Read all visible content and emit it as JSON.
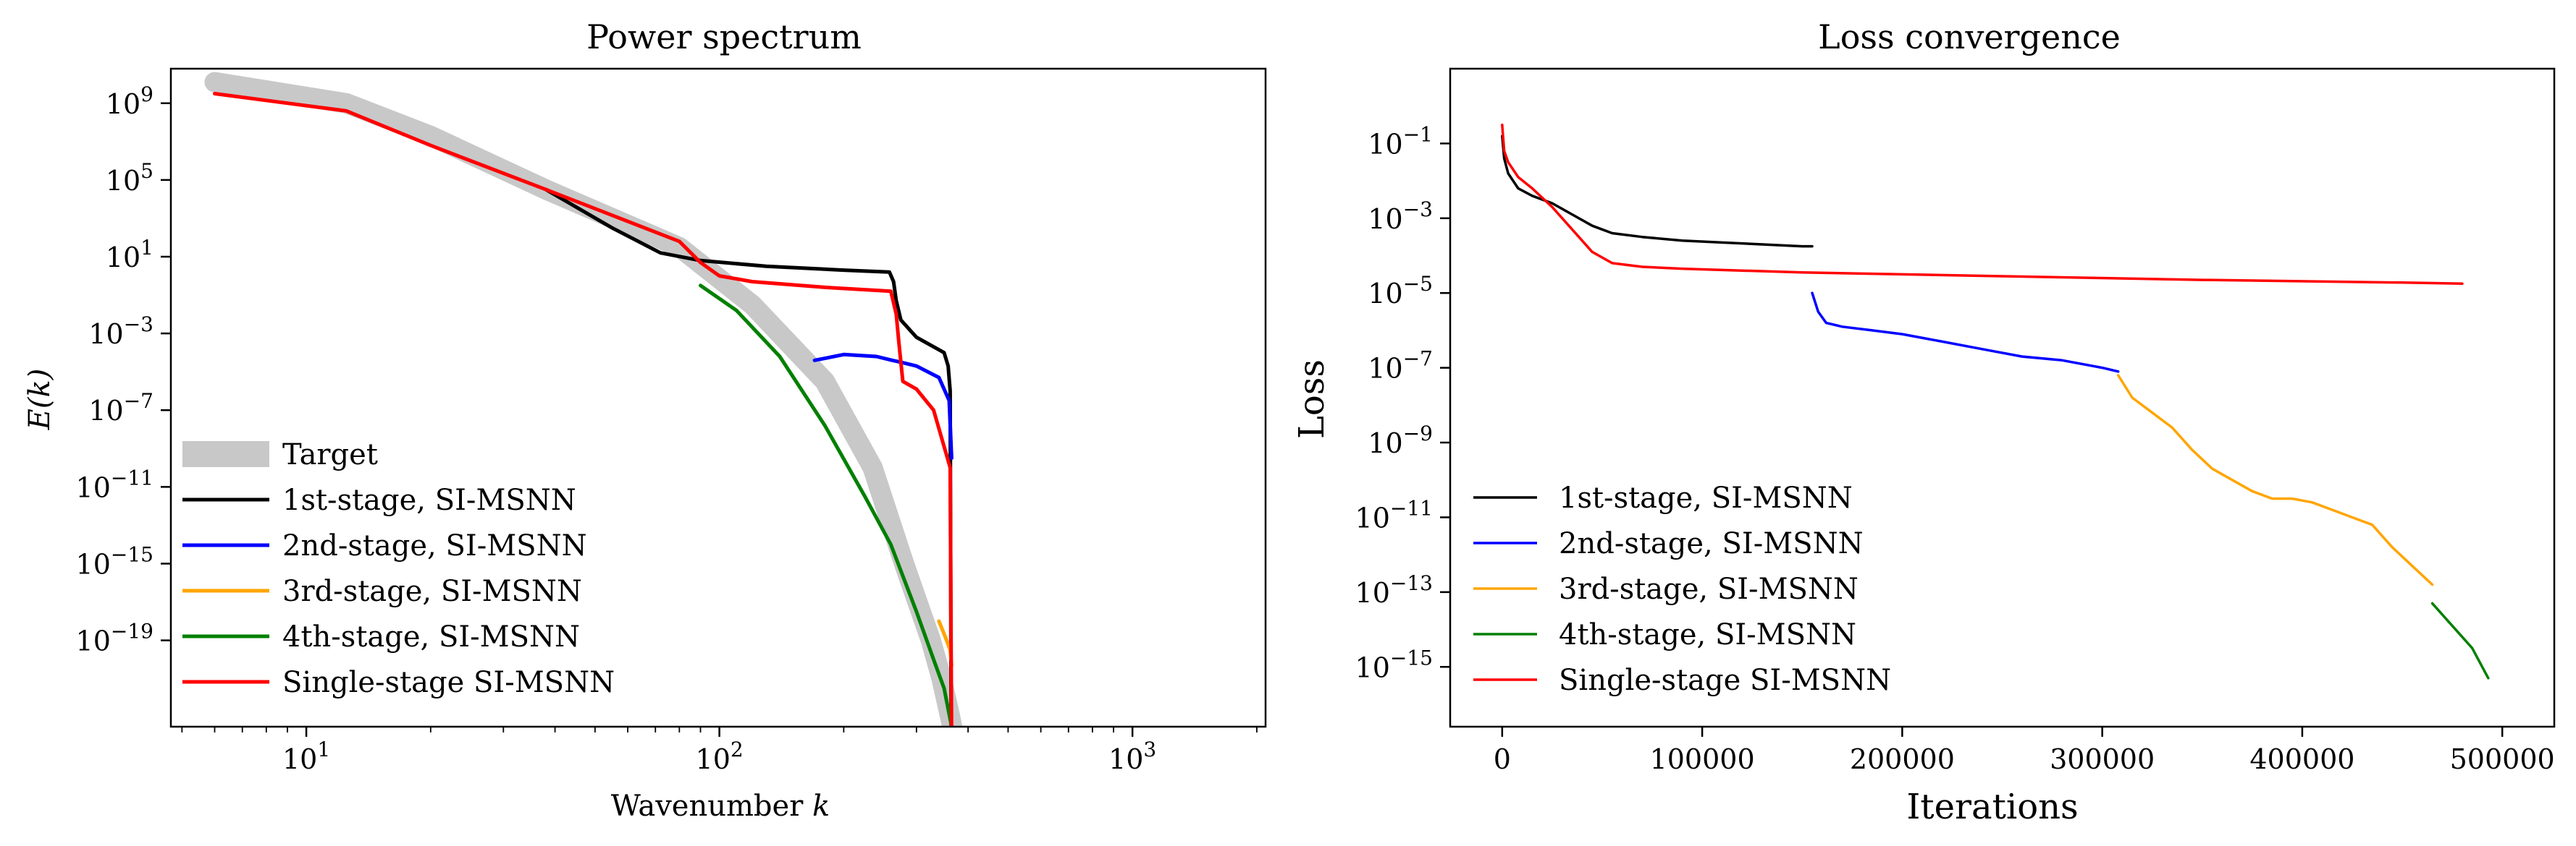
{
  "chart_data": [
    {
      "type": "line",
      "title": "Power spectrum",
      "xlabel": "Wavenumber k",
      "xlabel_text": "Wavenumber ",
      "xlabel_var": "k",
      "ylabel": "E(k)",
      "xscale": "log",
      "yscale": "log",
      "xlim": [
        4.7,
        2100
      ],
      "ylim_exp": [
        -23.5,
        10.8
      ],
      "xticks": [
        {
          "value": 10,
          "base": "10",
          "exp": "1"
        },
        {
          "value": 100,
          "base": "10",
          "exp": "2"
        },
        {
          "value": 1000,
          "base": "10",
          "exp": "3"
        }
      ],
      "yticks": [
        {
          "exp_value": 9,
          "base": "10",
          "exp": "9"
        },
        {
          "exp_value": 5,
          "base": "10",
          "exp": "5"
        },
        {
          "exp_value": 1,
          "base": "10",
          "exp": "1"
        },
        {
          "exp_value": -3,
          "base": "10",
          "exp": "−3"
        },
        {
          "exp_value": -7,
          "base": "10",
          "exp": "−7"
        },
        {
          "exp_value": -11,
          "base": "10",
          "exp": "−11"
        },
        {
          "exp_value": -15,
          "base": "10",
          "exp": "−15"
        },
        {
          "exp_value": -19,
          "base": "10",
          "exp": "−19"
        }
      ],
      "legend_position": "lower-left",
      "series": [
        {
          "name": "Target",
          "color": "#c8c8c8",
          "width": 28,
          "x": [
            6,
            12.5,
            20,
            38,
            80,
            120,
            180,
            235,
            280,
            325,
            345,
            362,
            370
          ],
          "log10y": [
            10.1,
            9.0,
            7.3,
            4.5,
            1.5,
            -1.5,
            -5.5,
            -10.0,
            -15.0,
            -19.0,
            -21.0,
            -23.0,
            -24.0
          ]
        },
        {
          "name": "1st-stage, SI-MSNN",
          "color": "#000000",
          "width": 5,
          "x": [
            38,
            55,
            72,
            90,
            130,
            200,
            258,
            264,
            268,
            275,
            300,
            350,
            358,
            362,
            364
          ],
          "log10y": [
            4.5,
            2.5,
            1.2,
            0.8,
            0.5,
            0.3,
            0.2,
            -0.3,
            -1.3,
            -2.3,
            -3.2,
            -4.0,
            -4.7,
            -6.0,
            -24.5
          ]
        },
        {
          "name": "2nd-stage, SI-MSNN",
          "color": "#0000ff",
          "width": 5,
          "x": [
            170,
            180,
            200,
            240,
            262,
            275,
            300,
            340,
            360,
            365
          ],
          "log10y": [
            -4.4,
            -4.3,
            -4.1,
            -4.2,
            -4.4,
            -4.5,
            -4.7,
            -5.3,
            -6.5,
            -9.5
          ]
        },
        {
          "name": "3rd-stage, SI-MSNN",
          "color": "#ffa500",
          "width": 5,
          "x": [
            340,
            352,
            362,
            365
          ],
          "log10y": [
            -18.0,
            -18.8,
            -19.5,
            -20.3
          ]
        },
        {
          "name": "4th-stage, SI-MSNN",
          "color": "#008000",
          "width": 5,
          "x": [
            90,
            110,
            140,
            180,
            225,
            260,
            300,
            330,
            350,
            365
          ],
          "log10y": [
            -0.5,
            -1.8,
            -4.2,
            -7.8,
            -11.5,
            -14.0,
            -17.5,
            -20.0,
            -21.5,
            -23.5
          ]
        },
        {
          "name": "Single-stage SI-MSNN",
          "color": "#ff0000",
          "width": 5,
          "x": [
            6,
            12.5,
            20,
            38,
            80,
            90,
            100,
            120,
            180,
            260,
            268,
            272,
            278,
            300,
            330,
            362,
            365
          ],
          "log10y": [
            9.5,
            8.6,
            6.8,
            4.5,
            1.8,
            0.7,
            0.0,
            -0.3,
            -0.6,
            -0.8,
            -2.0,
            -3.5,
            -5.5,
            -5.9,
            -7.0,
            -10.0,
            -24.5
          ]
        }
      ]
    },
    {
      "type": "line",
      "title": "Loss convergence",
      "xlabel": "Iterations",
      "ylabel": "Loss",
      "xscale": "linear",
      "yscale": "log",
      "xlim": [
        -26000,
        526000
      ],
      "ylim_exp": [
        -16.6,
        1.0
      ],
      "xticks": [
        {
          "value": 0,
          "label": "0"
        },
        {
          "value": 100000,
          "label": "100000"
        },
        {
          "value": 200000,
          "label": "200000"
        },
        {
          "value": 300000,
          "label": "300000"
        },
        {
          "value": 400000,
          "label": "400000"
        },
        {
          "value": 500000,
          "label": "500000"
        }
      ],
      "yticks": [
        {
          "exp_value": -1,
          "base": "10",
          "exp": "−1"
        },
        {
          "exp_value": -3,
          "base": "10",
          "exp": "−3"
        },
        {
          "exp_value": -5,
          "base": "10",
          "exp": "−5"
        },
        {
          "exp_value": -7,
          "base": "10",
          "exp": "−7"
        },
        {
          "exp_value": -9,
          "base": "10",
          "exp": "−9"
        },
        {
          "exp_value": -11,
          "base": "10",
          "exp": "−11"
        },
        {
          "exp_value": -13,
          "base": "10",
          "exp": "−13"
        },
        {
          "exp_value": -15,
          "base": "10",
          "exp": "−15"
        }
      ],
      "legend_position": "lower-left",
      "series": [
        {
          "name": "1st-stage, SI-MSNN",
          "color": "#000000",
          "width": 3.5,
          "x": [
            0,
            1000,
            3000,
            8000,
            15000,
            25000,
            35000,
            45000,
            55000,
            70000,
            90000,
            110000,
            130000,
            150000,
            155000
          ],
          "log10y": [
            -0.8,
            -1.4,
            -1.8,
            -2.2,
            -2.4,
            -2.6,
            -2.9,
            -3.2,
            -3.4,
            -3.5,
            -3.6,
            -3.65,
            -3.7,
            -3.75,
            -3.75
          ]
        },
        {
          "name": "2nd-stage, SI-MSNN",
          "color": "#0000ff",
          "width": 3.5,
          "x": [
            155000,
            158000,
            162000,
            170000,
            185000,
            200000,
            220000,
            240000,
            260000,
            280000,
            300000,
            308000
          ],
          "log10y": [
            -5.0,
            -5.5,
            -5.8,
            -5.9,
            -6.0,
            -6.1,
            -6.3,
            -6.5,
            -6.7,
            -6.8,
            -7.0,
            -7.1
          ]
        },
        {
          "name": "3rd-stage, SI-MSNN",
          "color": "#ffa500",
          "width": 3.5,
          "x": [
            308000,
            315000,
            325000,
            335000,
            345000,
            355000,
            365000,
            375000,
            385000,
            395000,
            405000,
            415000,
            425000,
            435000,
            445000,
            455000,
            465000
          ],
          "log10y": [
            -7.2,
            -7.8,
            -8.2,
            -8.6,
            -9.2,
            -9.7,
            -10.0,
            -10.3,
            -10.5,
            -10.5,
            -10.6,
            -10.8,
            -11.0,
            -11.2,
            -11.8,
            -12.3,
            -12.8
          ]
        },
        {
          "name": "4th-stage, SI-MSNN",
          "color": "#008000",
          "width": 3.5,
          "x": [
            465000,
            470000,
            475000,
            480000,
            485000,
            490000,
            493000
          ],
          "log10y": [
            -13.3,
            -13.6,
            -13.9,
            -14.2,
            -14.5,
            -15.0,
            -15.3
          ]
        },
        {
          "name": "Single-stage SI-MSNN",
          "color": "#ff0000",
          "width": 3.5,
          "x": [
            0,
            1000,
            3000,
            8000,
            15000,
            25000,
            35000,
            45000,
            55000,
            70000,
            90000,
            150000,
            250000,
            350000,
            450000,
            480000
          ],
          "log10y": [
            -0.5,
            -1.2,
            -1.5,
            -1.9,
            -2.2,
            -2.7,
            -3.3,
            -3.9,
            -4.2,
            -4.3,
            -4.35,
            -4.45,
            -4.55,
            -4.65,
            -4.72,
            -4.75
          ]
        }
      ]
    }
  ]
}
